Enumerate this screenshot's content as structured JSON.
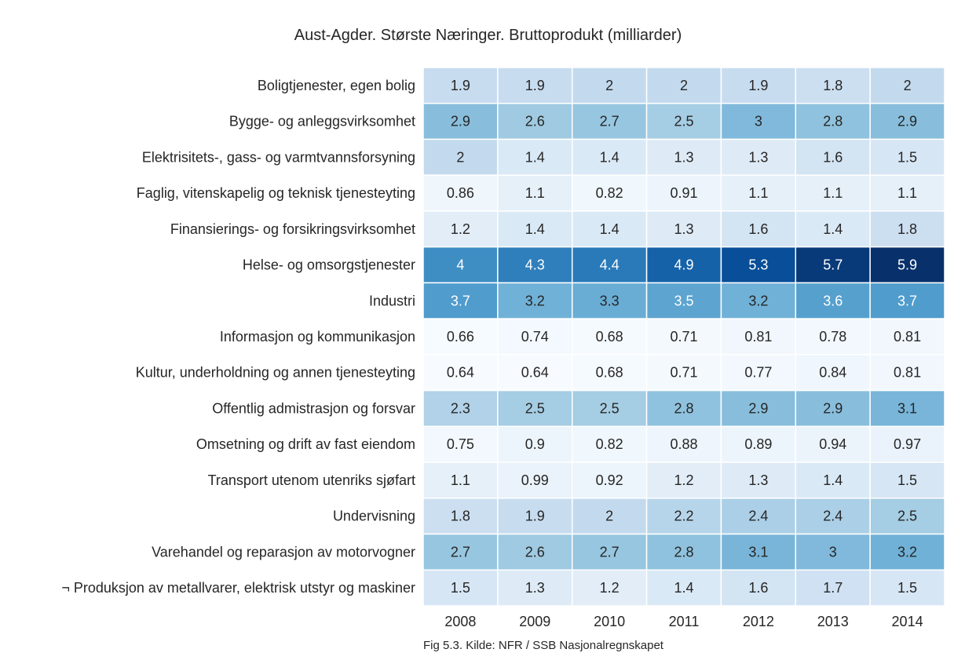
{
  "chart_data": {
    "type": "heatmap",
    "title": "Aust-Agder. Største Næringer. Bruttoprodukt (milliarder)",
    "caption": "Fig 5.3. Kilde: NFR / SSB Nasjonalregnskapet",
    "x": [
      "2008",
      "2009",
      "2010",
      "2011",
      "2012",
      "2013",
      "2014"
    ],
    "y": [
      "Boligtjenester, egen bolig",
      "Bygge- og anleggsvirksomhet",
      "Elektrisitets-, gass- og varmtvannsforsyning",
      "Faglig, vitenskapelig og teknisk tjenesteyting",
      "Finansierings- og forsikringsvirksomhet",
      "Helse- og omsorgstjenester",
      "Industri",
      "Informasjon og kommunikasjon",
      "Kultur, underholdning og annen tjenesteyting",
      "Offentlig admistrasjon og forsvar",
      "Omsetning og drift av fast eiendom",
      "Transport utenom utenriks sjøfart",
      "Undervisning",
      "Varehandel og reparasjon av motorvogner",
      "¬ Produksjon av metallvarer, elektrisk utstyr og maskiner"
    ],
    "values": [
      [
        "1.9",
        "1.9",
        "2",
        "2",
        "1.9",
        "1.8",
        "2"
      ],
      [
        "2.9",
        "2.6",
        "2.7",
        "2.5",
        "3",
        "2.8",
        "2.9"
      ],
      [
        "2",
        "1.4",
        "1.4",
        "1.3",
        "1.3",
        "1.6",
        "1.5"
      ],
      [
        "0.86",
        "1.1",
        "0.82",
        "0.91",
        "1.1",
        "1.1",
        "1.1"
      ],
      [
        "1.2",
        "1.4",
        "1.4",
        "1.3",
        "1.6",
        "1.4",
        "1.8"
      ],
      [
        "4",
        "4.3",
        "4.4",
        "4.9",
        "5.3",
        "5.7",
        "5.9"
      ],
      [
        "3.7",
        "3.2",
        "3.3",
        "3.5",
        "3.2",
        "3.6",
        "3.7"
      ],
      [
        "0.66",
        "0.74",
        "0.68",
        "0.71",
        "0.81",
        "0.78",
        "0.81"
      ],
      [
        "0.64",
        "0.64",
        "0.68",
        "0.71",
        "0.77",
        "0.84",
        "0.81"
      ],
      [
        "2.3",
        "2.5",
        "2.5",
        "2.8",
        "2.9",
        "2.9",
        "3.1"
      ],
      [
        "0.75",
        "0.9",
        "0.82",
        "0.88",
        "0.89",
        "0.94",
        "0.97"
      ],
      [
        "1.1",
        "0.99",
        "0.92",
        "1.2",
        "1.3",
        "1.4",
        "1.5"
      ],
      [
        "1.8",
        "1.9",
        "2",
        "2.2",
        "2.4",
        "2.4",
        "2.5"
      ],
      [
        "2.7",
        "2.6",
        "2.7",
        "2.8",
        "3.1",
        "3",
        "3.2"
      ],
      [
        "1.5",
        "1.3",
        "1.2",
        "1.4",
        "1.6",
        "1.7",
        "1.5"
      ]
    ],
    "colormap": "Blues",
    "grid": false,
    "legend": "none"
  }
}
